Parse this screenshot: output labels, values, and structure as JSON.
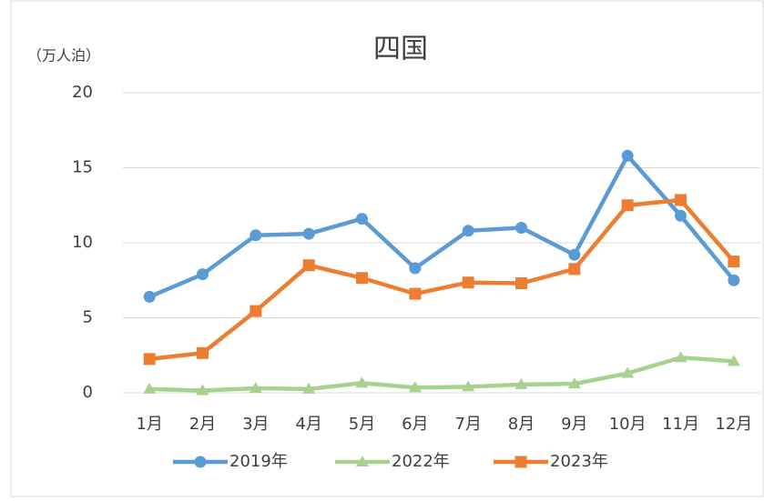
{
  "chart_data": {
    "type": "line",
    "title": "四国",
    "y_axis_label": "（万人泊）",
    "categories": [
      "1月",
      "2月",
      "3月",
      "4月",
      "5月",
      "6月",
      "7月",
      "8月",
      "9月",
      "10月",
      "11月",
      "12月"
    ],
    "series": [
      {
        "name": "2019年",
        "color": "#5b9bd5",
        "marker": "circle",
        "values": [
          6.4,
          7.9,
          10.5,
          10.6,
          11.6,
          8.3,
          10.8,
          11.0,
          9.2,
          15.8,
          11.8,
          7.5
        ]
      },
      {
        "name": "2022年",
        "color": "#a9d18e",
        "marker": "triangle",
        "values": [
          0.25,
          0.15,
          0.3,
          0.25,
          0.65,
          0.35,
          0.4,
          0.55,
          0.6,
          1.3,
          2.35,
          2.1
        ]
      },
      {
        "name": "2023年",
        "color": "#ed7d31",
        "marker": "square",
        "values": [
          2.25,
          2.65,
          5.45,
          8.5,
          7.65,
          6.6,
          7.35,
          7.3,
          8.25,
          12.5,
          12.85,
          8.75
        ]
      }
    ],
    "ylim": [
      0,
      20
    ],
    "yticks": [
      0,
      5,
      10,
      15,
      20
    ],
    "grid": true,
    "legend": "bottom"
  }
}
